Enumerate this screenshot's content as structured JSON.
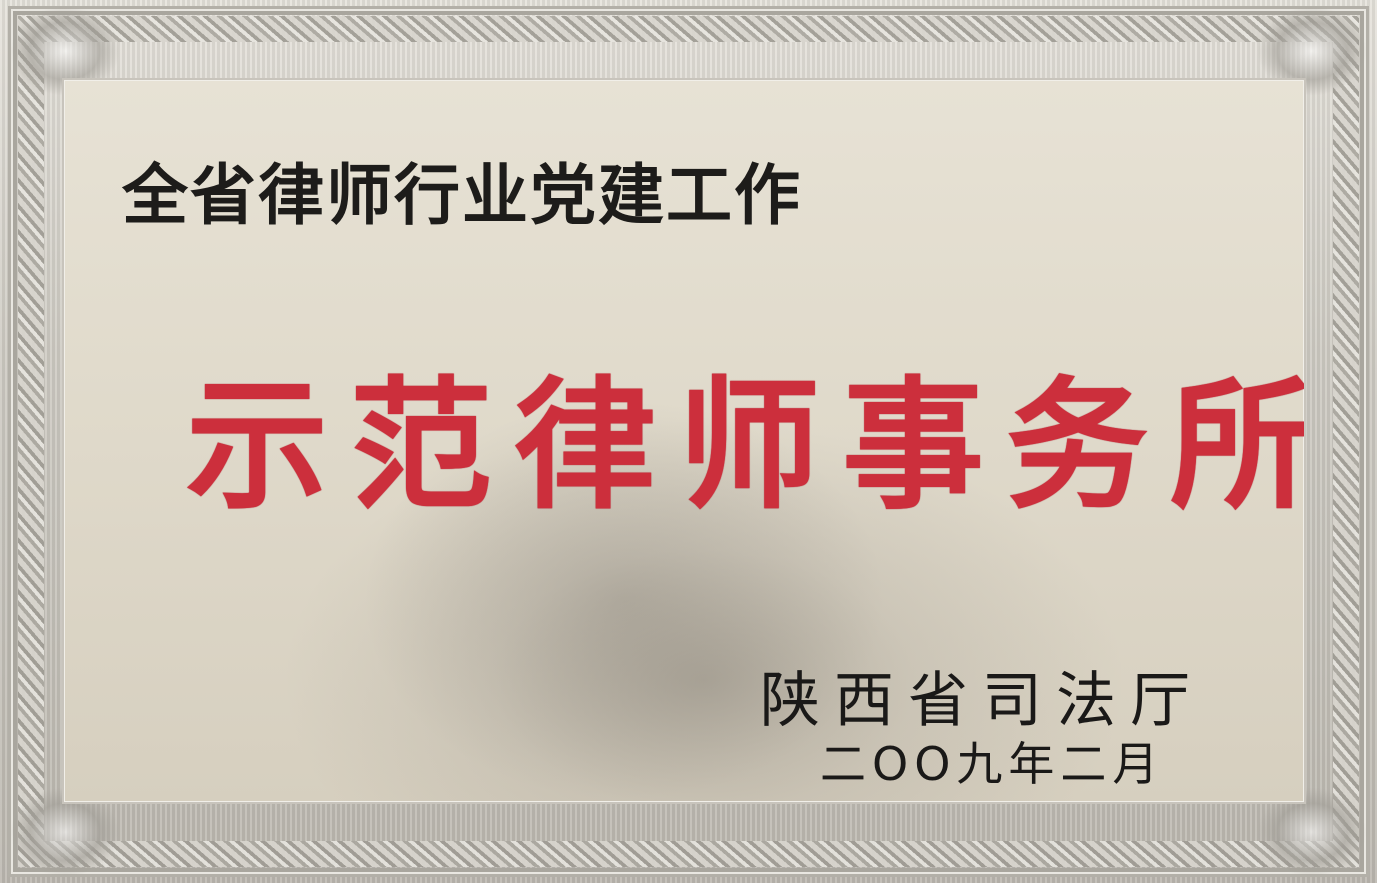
{
  "plaque": {
    "heading": "全省律师行业党建工作",
    "award_title": "示范律师事务所",
    "issuer": "陕西省司法厅",
    "issue_date": "二OO九年二月"
  },
  "colors": {
    "award_title": "#cc2f3c",
    "text": "#1d1c1a",
    "panel": "#e2dccd",
    "frame": "#bdb9b1"
  }
}
